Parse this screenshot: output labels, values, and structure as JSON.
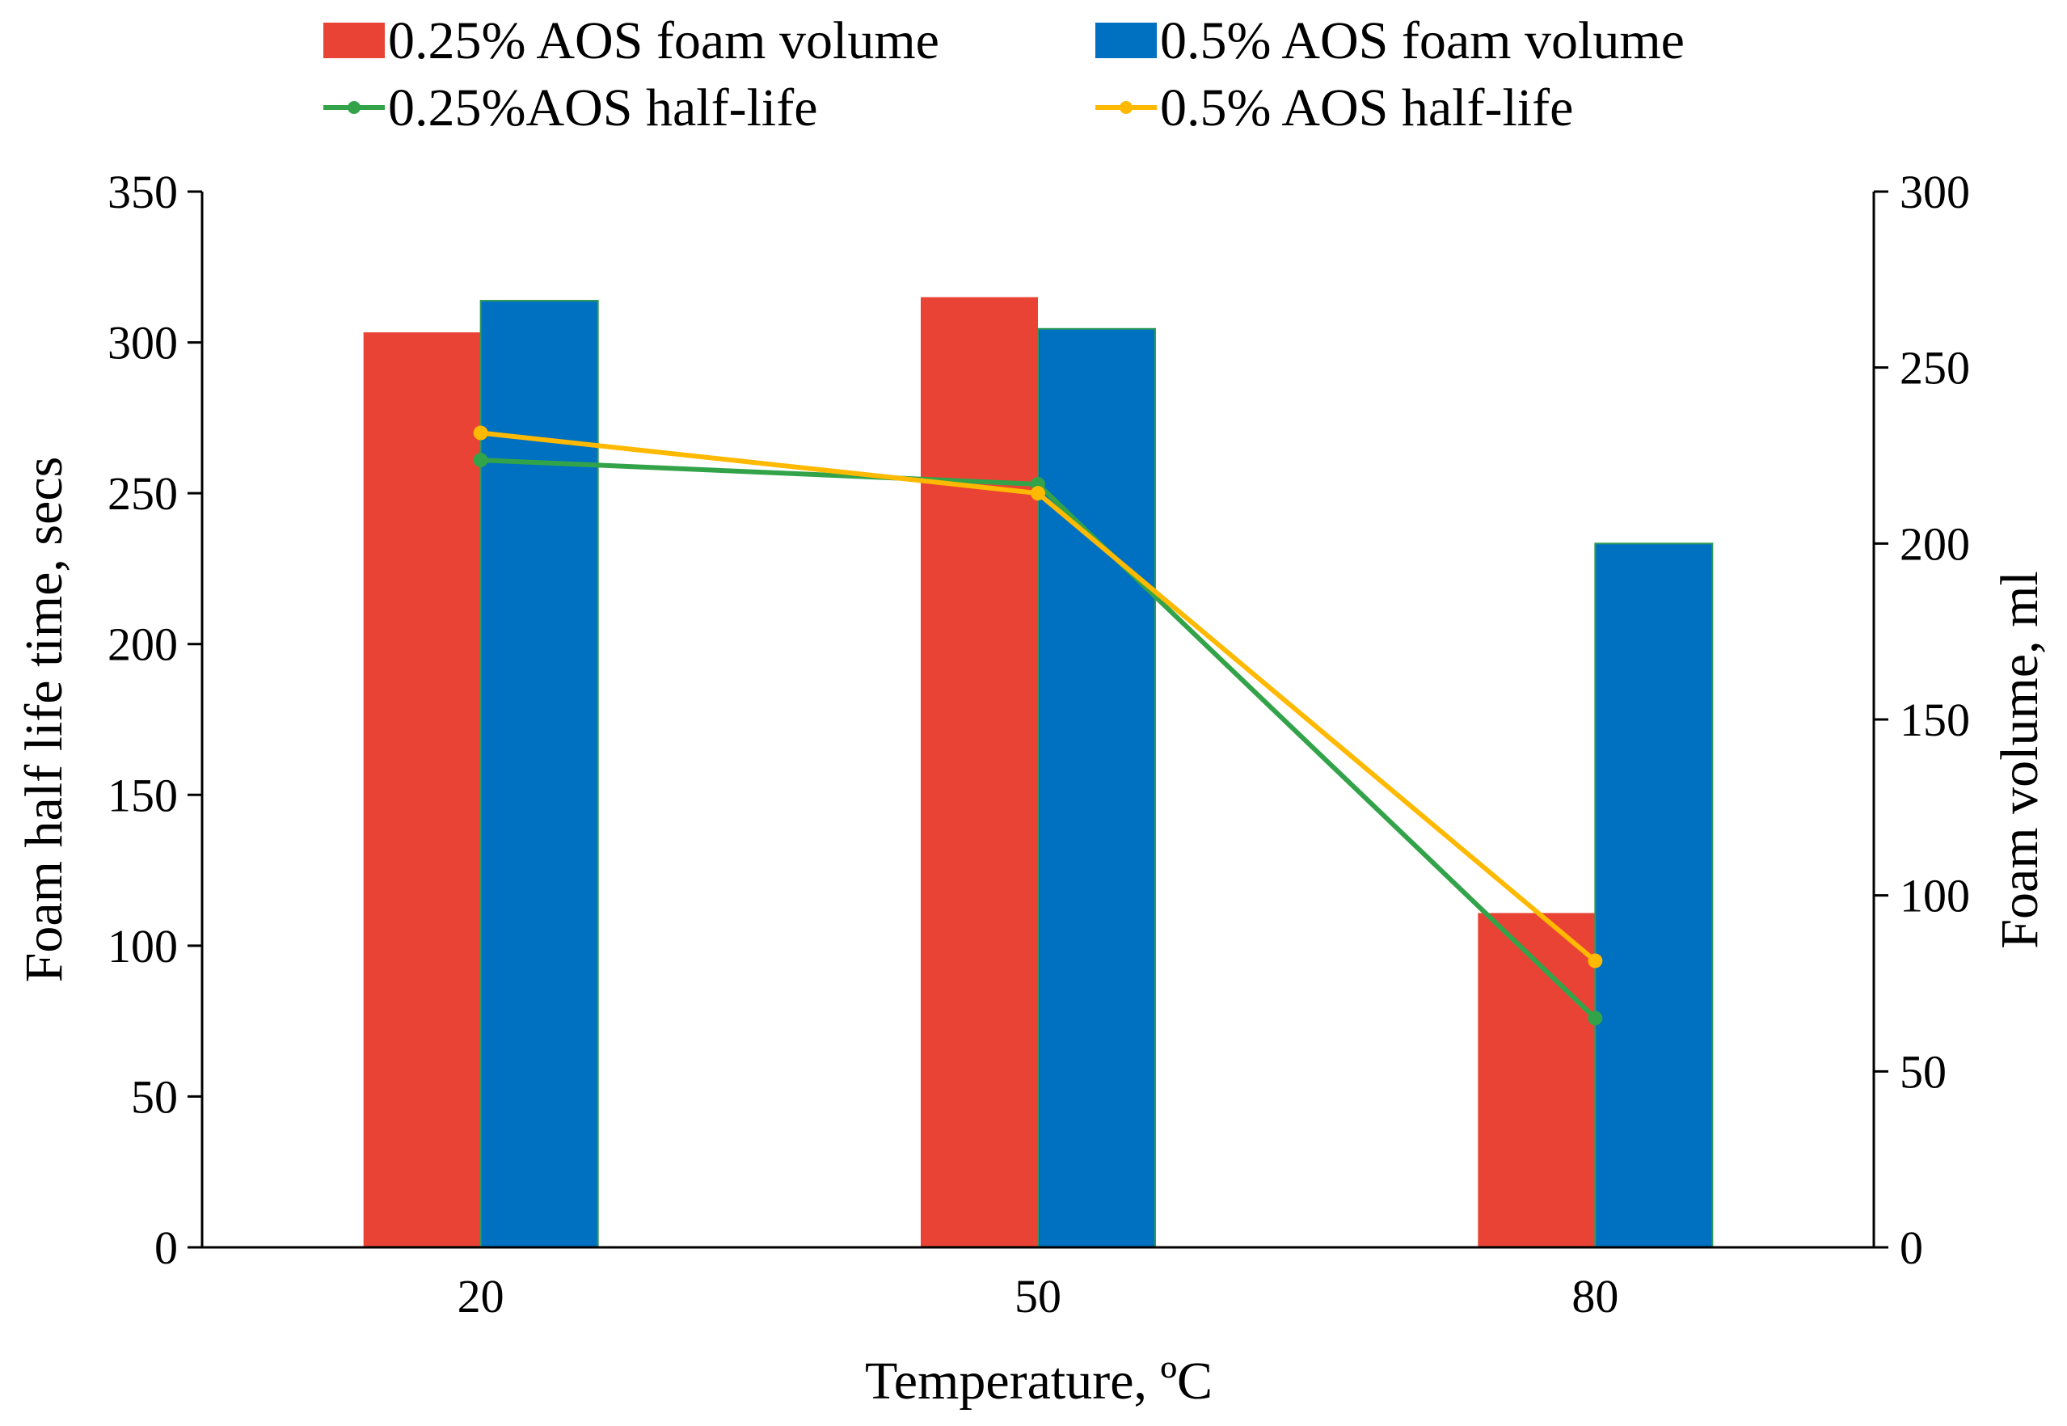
{
  "chart_data": {
    "type": "bar",
    "categories": [
      "20",
      "50",
      "80"
    ],
    "xlabel": "Temperature, ºC",
    "ylabel": "Foam half life time, secs",
    "y2label": "Foam volume, ml",
    "ylim": [
      0,
      350
    ],
    "y2lim": [
      0,
      300
    ],
    "yticks": [
      "0",
      "50",
      "100",
      "150",
      "200",
      "250",
      "300",
      "350"
    ],
    "y2ticks": [
      "0",
      "50",
      "100",
      "150",
      "200",
      "250",
      "300"
    ],
    "grid": false,
    "legend_position": "top",
    "bar_series": [
      {
        "name": "0.25% AOS foam volume",
        "axis": "right",
        "color": "#E94335",
        "values": [
          260,
          270,
          95
        ]
      },
      {
        "name": "0.5% AOS foam volume",
        "axis": "right",
        "color": "#0070C0",
        "values": [
          269,
          261,
          200
        ]
      }
    ],
    "line_series": [
      {
        "name": "0.25%AOS half-life",
        "axis": "left",
        "color": "#33A34A",
        "values": [
          261,
          253,
          76
        ]
      },
      {
        "name": "0.5% AOS half-life",
        "axis": "left",
        "color": "#FFB900",
        "values": [
          270,
          250,
          95
        ]
      }
    ]
  }
}
